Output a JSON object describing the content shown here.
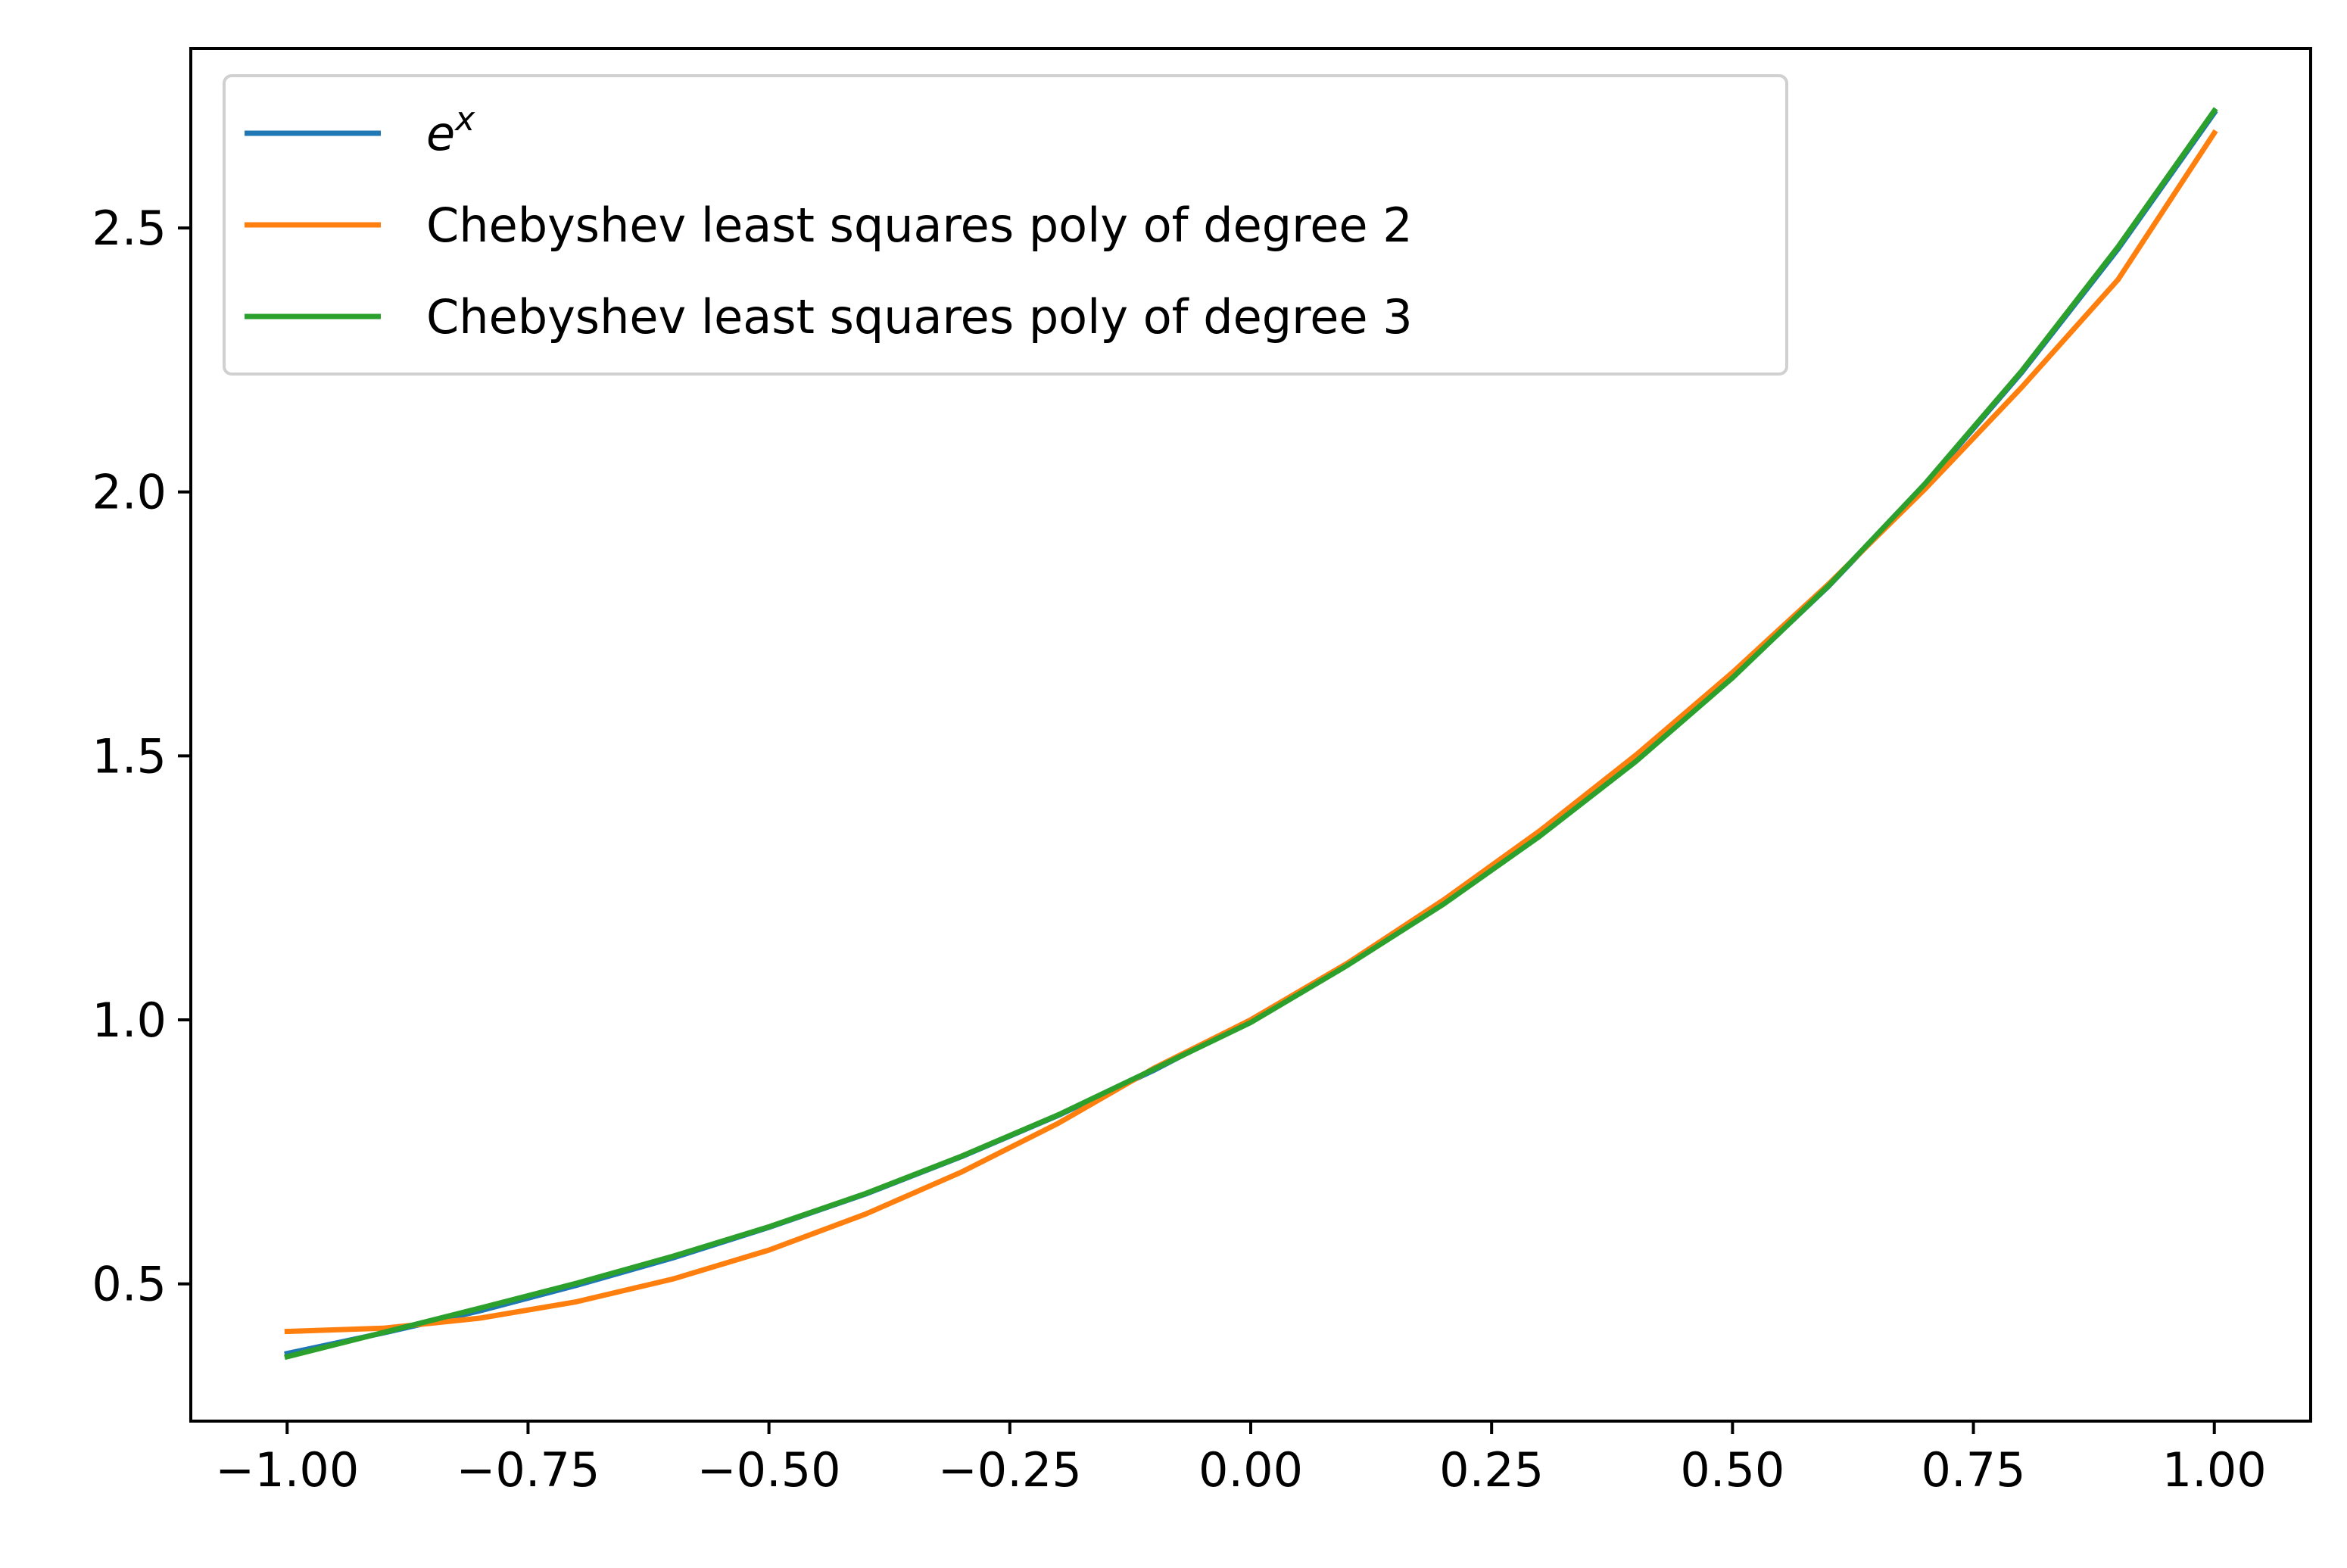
{
  "chart_data": {
    "type": "line",
    "title": "",
    "xlabel": "",
    "ylabel": "",
    "xlim": [
      -1.1,
      1.1
    ],
    "ylim": [
      0.24,
      2.84
    ],
    "xticks": [
      -1.0,
      -0.75,
      -0.5,
      -0.25,
      0.0,
      0.25,
      0.5,
      0.75,
      1.0
    ],
    "xtick_labels": [
      "−1.00",
      "−0.75",
      "−0.50",
      "−0.25",
      "0.00",
      "0.25",
      "0.50",
      "0.75",
      "1.00"
    ],
    "yticks": [
      0.5,
      1.0,
      1.5,
      2.0,
      2.5
    ],
    "ytick_labels": [
      "0.5",
      "1.0",
      "1.5",
      "2.0",
      "2.5"
    ],
    "grid": false,
    "legend_position": "upper-left",
    "series": [
      {
        "name": "e^x",
        "name_base": "e",
        "name_sup": "x",
        "color": "#1f77b4",
        "x": [
          -1.0,
          -0.9,
          -0.8,
          -0.7,
          -0.6,
          -0.5,
          -0.4,
          -0.3,
          -0.2,
          -0.1,
          0.0,
          0.1,
          0.2,
          0.3,
          0.4,
          0.5,
          0.6,
          0.7,
          0.8,
          0.9,
          1.0
        ],
        "y": [
          0.368,
          0.407,
          0.449,
          0.497,
          0.549,
          0.607,
          0.67,
          0.741,
          0.819,
          0.905,
          1.0,
          1.105,
          1.221,
          1.35,
          1.492,
          1.649,
          1.822,
          2.014,
          2.226,
          2.46,
          2.718
        ]
      },
      {
        "name": "Chebyshev least squares poly of degree 2",
        "color": "#ff7f0e",
        "x": [
          -1.0,
          -0.9,
          -0.8,
          -0.7,
          -0.6,
          -0.5,
          -0.4,
          -0.3,
          -0.2,
          -0.1,
          0.0,
          0.1,
          0.2,
          0.3,
          0.4,
          0.5,
          0.6,
          0.7,
          0.8,
          0.9,
          1.0
        ],
        "y": [
          0.41,
          0.416,
          0.435,
          0.466,
          0.509,
          0.564,
          0.632,
          0.712,
          0.804,
          0.909,
          1.0,
          1.107,
          1.227,
          1.358,
          1.502,
          1.658,
          1.826,
          2.006,
          2.198,
          2.402,
          2.68
        ]
      },
      {
        "name": "Chebyshev least squares poly of degree 3",
        "color": "#2ca02c",
        "x": [
          -1.0,
          -0.9,
          -0.8,
          -0.7,
          -0.6,
          -0.5,
          -0.4,
          -0.3,
          -0.2,
          -0.1,
          0.0,
          0.1,
          0.2,
          0.3,
          0.4,
          0.5,
          0.6,
          0.7,
          0.8,
          0.9,
          1.0
        ],
        "y": [
          0.362,
          0.408,
          0.454,
          0.501,
          0.552,
          0.608,
          0.671,
          0.742,
          0.82,
          0.907,
          0.995,
          1.103,
          1.219,
          1.348,
          1.49,
          1.648,
          1.823,
          2.016,
          2.229,
          2.464,
          2.722
        ]
      }
    ]
  }
}
